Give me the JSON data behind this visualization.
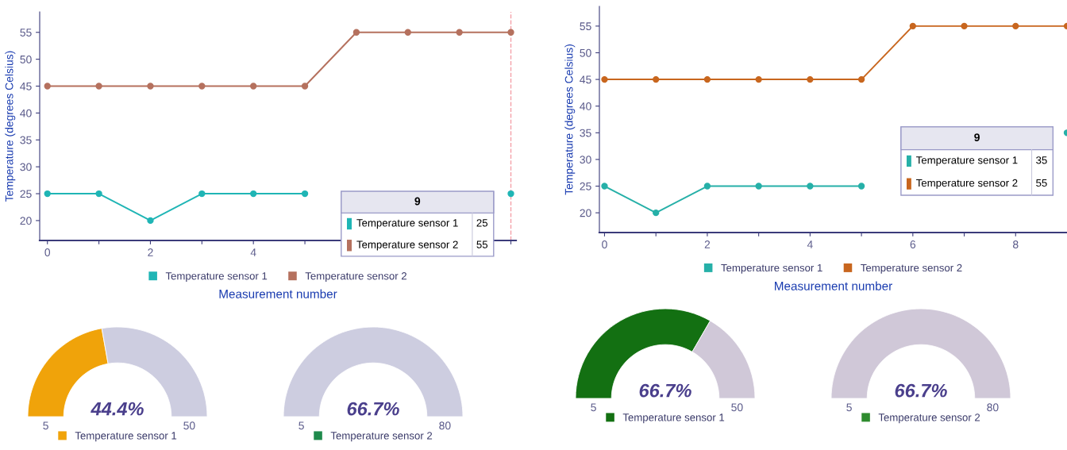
{
  "chart_data": [
    {
      "type": "line",
      "xlabel": "Measurement number",
      "ylabel": "Temperature (degrees Celsius)",
      "x": [
        0,
        1,
        2,
        3,
        4,
        5,
        6,
        7,
        8,
        9
      ],
      "series": [
        {
          "name": "Temperature sensor 1",
          "color": "#1fb5b5",
          "values": [
            25,
            25,
            20,
            25,
            25,
            25,
            null,
            null,
            null,
            25
          ]
        },
        {
          "name": "Temperature sensor 2",
          "color": "#b5715e",
          "values": [
            45,
            45,
            45,
            45,
            45,
            45,
            55,
            55,
            55,
            55
          ]
        }
      ],
      "xlim": [
        -0.15,
        9.1
      ],
      "xticks": [
        0,
        {
          "value": 1,
          "label": null
        },
        2,
        {
          "value": 3,
          "label": null
        },
        4,
        {
          "value": 5,
          "label": null
        },
        {
          "value": 6,
          "label": null
        },
        {
          "value": 7,
          "label": null
        },
        {
          "value": 8,
          "label": null
        },
        {
          "value": 9,
          "label": null
        }
      ],
      "ylim": [
        16.3,
        58.8
      ],
      "yticks": [
        20,
        25,
        30,
        35,
        40,
        45,
        50,
        55
      ],
      "ref_lines": [
        {
          "axis": "x",
          "value": 9,
          "color": "#f4a0a8",
          "line_style": "dashed"
        }
      ],
      "annotations": [
        "9",
        "Temperature sensor 1",
        "25",
        "Temperature sensor 2",
        "55"
      ],
      "marker": "circle",
      "line_style": "solid",
      "legend": "bottom",
      "grid": false
    },
    {
      "type": "line",
      "xlabel": "Measurement number",
      "ylabel": "Temperature (degrees Celsius)",
      "x": [
        0,
        1,
        2,
        3,
        4,
        5,
        6,
        7,
        8,
        9
      ],
      "series": [
        {
          "name": "Temperature sensor 1",
          "color": "#26b0a8",
          "values": [
            25,
            20,
            25,
            25,
            25,
            25,
            null,
            null,
            null,
            35
          ]
        },
        {
          "name": "Temperature sensor 2",
          "color": "#c8661e",
          "values": [
            45,
            45,
            45,
            45,
            45,
            45,
            55,
            55,
            55,
            55
          ]
        }
      ],
      "xlim": [
        -0.1,
        9.0
      ],
      "xticks": [
        0,
        {
          "value": 1,
          "label": null
        },
        2,
        {
          "value": 3,
          "label": null
        },
        4,
        {
          "value": 5,
          "label": null
        },
        6,
        {
          "value": 7,
          "label": null
        },
        8
      ],
      "ylim": [
        16.3,
        58.7
      ],
      "yticks": [
        20,
        25,
        30,
        35,
        40,
        45,
        50,
        55
      ],
      "annotations": [
        "9",
        "Temperature sensor 1",
        "35",
        "Temperature sensor 2",
        "55"
      ],
      "marker": "circle",
      "line_style": "solid",
      "legend": "bottom",
      "grid": false
    },
    {
      "type": "donut",
      "categories": [
        "Temperature sensor 1",
        null
      ],
      "values": [
        44.4,
        55.6
      ],
      "colors": [
        "#f0a30a",
        "#cdcde0"
      ],
      "annotations": [
        "44.4%",
        "5",
        "50"
      ],
      "legend": "bottom"
    },
    {
      "type": "pie",
      "categories": [
        "Temperature sensor 2",
        null
      ],
      "values": [
        0,
        100
      ],
      "colors": [
        "#1f8a4c",
        "#cdcde0"
      ],
      "annotations": [
        "66.7%",
        "5",
        "80"
      ],
      "legend": "bottom"
    },
    {
      "type": "donut",
      "categories": [
        "Temperature sensor 1",
        null
      ],
      "values": [
        66.7,
        33.3
      ],
      "colors": [
        "#137012",
        "#d0c8d8"
      ],
      "annotations": [
        "66.7%",
        "5",
        "50"
      ],
      "legend": "bottom"
    },
    {
      "type": "pie",
      "categories": [
        "Temperature sensor 2",
        null
      ],
      "values": [
        0,
        100
      ],
      "colors": [
        "#2e8b2e",
        "#d0c8d8"
      ],
      "annotations": [
        "66.7%",
        "5",
        "80"
      ],
      "legend": "bottom"
    }
  ]
}
